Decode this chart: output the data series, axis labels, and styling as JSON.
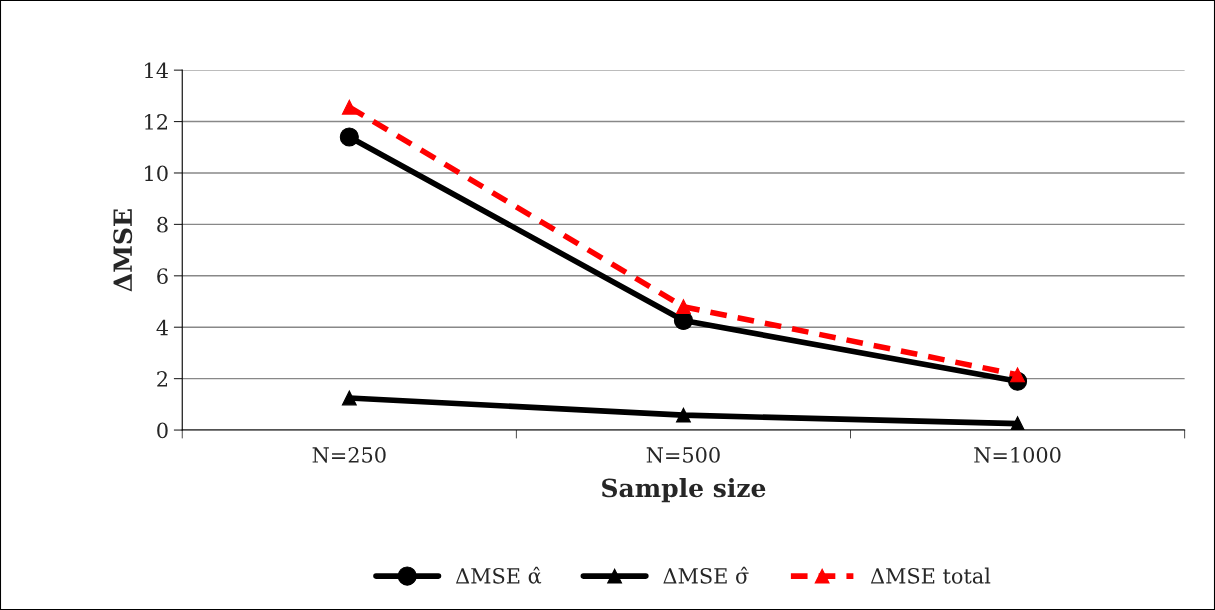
{
  "chart_data": {
    "type": "line",
    "xlabel": "Sample size",
    "ylabel": "ΔMSE",
    "categories": [
      "N=250",
      "N=500",
      "N=1000"
    ],
    "series": [
      {
        "name": "ΔMSE α̂",
        "color": "#000000",
        "values": [
          11.4,
          4.26,
          1.9
        ],
        "marker": "circle",
        "line_style": "solid"
      },
      {
        "name": "ΔMSE σ̂",
        "color": "#000000",
        "values": [
          1.25,
          0.58,
          0.25
        ],
        "marker": "triangle",
        "line_style": "solid"
      },
      {
        "name": "ΔMSE total",
        "color": "#ff0000",
        "values": [
          12.56,
          4.8,
          2.15
        ],
        "marker": "triangle",
        "line_style": "dashed"
      }
    ],
    "ylim": [
      0,
      14
    ],
    "yticks": [
      0,
      2,
      4,
      6,
      8,
      10,
      12,
      14
    ],
    "grid": "y",
    "legend": "bottom"
  }
}
